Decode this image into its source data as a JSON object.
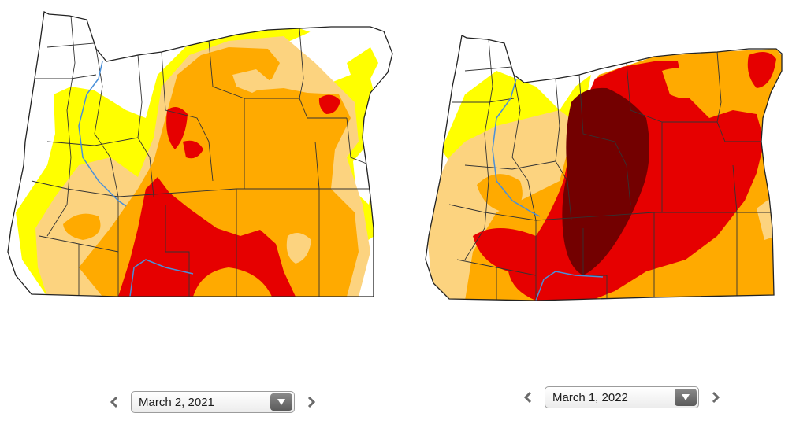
{
  "left_map": {
    "date": "March 2, 2021",
    "categories_shown": [
      "None",
      "D0 Abnormally Dry",
      "D1 Moderate Drought",
      "D2 Severe Drought",
      "D3 Extreme Drought"
    ]
  },
  "right_map": {
    "date": "March 1, 2022",
    "categories_shown": [
      "None",
      "D0 Abnormally Dry",
      "D1 Moderate Drought",
      "D2 Severe Drought",
      "D3 Extreme Drought",
      "D4 Exceptional Drought"
    ]
  },
  "colors": {
    "none": "#ffffff",
    "d0": "#ffff00",
    "d1": "#fcd37f",
    "d2": "#ffaa00",
    "d3": "#e60000",
    "d4": "#730000",
    "river": "#4a90d9",
    "county_line": "#333333"
  },
  "icons": {
    "prev": "chevron-left-icon",
    "next": "chevron-right-icon",
    "dropdown": "triangle-down-icon"
  }
}
